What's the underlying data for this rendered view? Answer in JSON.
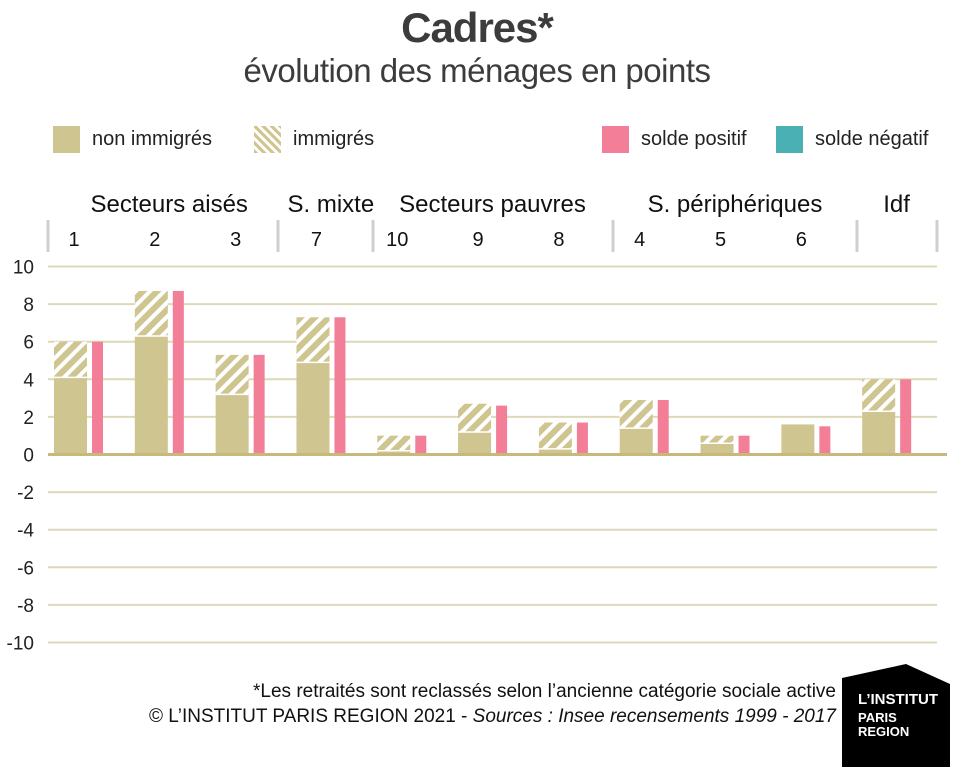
{
  "title": "Cadres*",
  "subtitle": "évolution des ménages en points",
  "legend": {
    "non_immigres": "non immigrés",
    "immigres": "immigrés",
    "solde_positif": "solde positif",
    "solde_negatif": "solde négatif"
  },
  "colors": {
    "non_immigres": "#cfc590",
    "solde_positif": "#f27f97",
    "solde_negatif": "#4bb0b4",
    "grid": "#ddd8b8",
    "zero_line": "#c7b97c"
  },
  "footnote": "*Les retraités sont reclassés selon l’ancienne catégorie sociale active",
  "credit": {
    "prefix": "© L’INSTITUT PARIS REGION 2021 - ",
    "sources": "Sources : Insee recensements 1999 - 2017"
  },
  "logo": {
    "line1": "L’INSTITUT",
    "line2": "PARIS",
    "line3": "REGION"
  },
  "chart_data": {
    "type": "bar",
    "groups": [
      {
        "label": "Secteurs aisés",
        "categories": [
          "1",
          "2",
          "3"
        ]
      },
      {
        "label": "S. mixte",
        "categories": [
          "7"
        ]
      },
      {
        "label": "Secteurs pauvres",
        "categories": [
          "10",
          "9",
          "8"
        ]
      },
      {
        "label": "S. périphériques",
        "categories": [
          "4",
          "5",
          "6"
        ]
      },
      {
        "label": "Idf",
        "categories": [
          ""
        ]
      }
    ],
    "categories": [
      "1",
      "2",
      "3",
      "7",
      "10",
      "9",
      "8",
      "4",
      "5",
      "6",
      ""
    ],
    "series": [
      {
        "name": "non immigrés",
        "values": [
          4.1,
          6.3,
          3.2,
          4.9,
          0.2,
          1.2,
          0.3,
          1.4,
          0.6,
          1.6,
          2.3
        ]
      },
      {
        "name": "immigrés",
        "values": [
          1.9,
          2.4,
          2.1,
          2.4,
          0.8,
          1.5,
          1.4,
          1.5,
          0.4,
          0.0,
          1.7
        ]
      },
      {
        "name": "solde positif",
        "values": [
          6.0,
          8.7,
          5.3,
          7.3,
          1.0,
          2.6,
          1.7,
          2.9,
          1.0,
          1.5,
          4.0
        ]
      },
      {
        "name": "solde négatif",
        "values": [
          0,
          0,
          0,
          0,
          0,
          0,
          0,
          0,
          0,
          0,
          0
        ]
      }
    ],
    "yticks": [
      10,
      8,
      6,
      4,
      2,
      0,
      -2,
      -4,
      -6,
      -8,
      -10
    ],
    "ylim": [
      -10,
      10
    ],
    "grid": true,
    "legend_position": "top"
  }
}
